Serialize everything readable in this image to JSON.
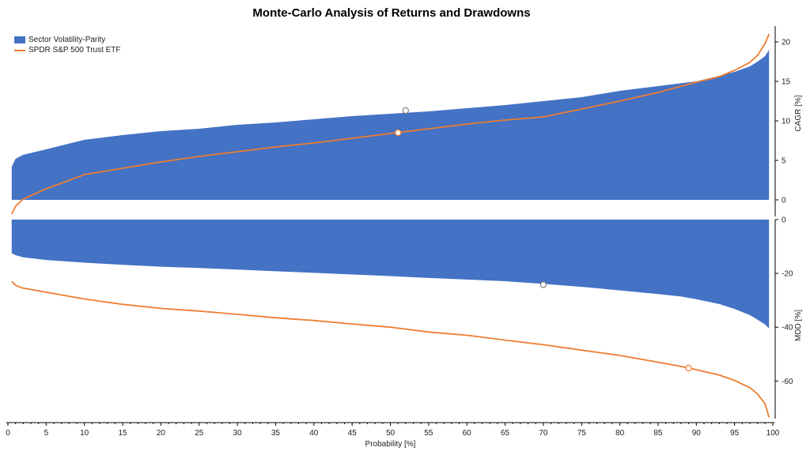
{
  "chart_data": {
    "type": "area",
    "title": "Monte-Carlo Analysis of Returns and Drawdowns",
    "xlabel": "Probability [%]",
    "xlim": [
      0,
      100
    ],
    "x_ticks": [
      0,
      5,
      10,
      15,
      20,
      25,
      30,
      35,
      40,
      45,
      50,
      55,
      60,
      65,
      70,
      75,
      80,
      85,
      90,
      95,
      100
    ],
    "legend": {
      "placement": "top-left",
      "entries": [
        {
          "name": "Sector Volatility-Parity",
          "color": "#4472c4",
          "kind": "area"
        },
        {
          "name": "SPDR S&P 500 Trust ETF",
          "color": "#ed7d31",
          "kind": "line"
        }
      ]
    },
    "panels": [
      {
        "id": "cagr",
        "ylabel": "CAGR [%]",
        "ylim": [
          -2.1,
          22
        ],
        "y_ticks": [
          0,
          5,
          10,
          15,
          20
        ],
        "x": [
          0.5,
          1,
          2,
          5,
          10,
          15,
          20,
          25,
          30,
          35,
          40,
          45,
          50,
          55,
          60,
          65,
          70,
          75,
          80,
          85,
          90,
          93,
          95,
          97,
          98,
          99,
          99.5
        ],
        "series": [
          {
            "name": "Sector Volatility-Parity",
            "kind": "area",
            "values": [
              4.2,
              5.2,
              5.7,
              6.4,
              7.6,
              8.2,
              8.7,
              9.0,
              9.5,
              9.8,
              10.2,
              10.6,
              10.9,
              11.2,
              11.6,
              12.0,
              12.5,
              13.0,
              13.8,
              14.4,
              15.0,
              15.7,
              16.2,
              16.9,
              17.5,
              18.2,
              19.0
            ]
          },
          {
            "name": "SPDR S&P 500 Trust ETF",
            "kind": "line",
            "values": [
              -1.8,
              -0.8,
              0.1,
              1.4,
              3.2,
              4.0,
              4.8,
              5.5,
              6.1,
              6.7,
              7.2,
              7.8,
              8.4,
              9.0,
              9.6,
              10.1,
              10.5,
              11.5,
              12.5,
              13.6,
              14.9,
              15.6,
              16.4,
              17.4,
              18.3,
              19.8,
              21.0
            ]
          }
        ],
        "markers": [
          {
            "series": "Sector Volatility-Parity",
            "x": 52,
            "y": 11.3
          },
          {
            "series": "SPDR S&P 500 Trust ETF",
            "x": 51,
            "y": 8.5
          }
        ]
      },
      {
        "id": "mdd",
        "ylabel": "MDD [%]",
        "ylim": [
          -74,
          0
        ],
        "y_ticks": [
          0,
          -20,
          -40,
          -60
        ],
        "x": [
          0.5,
          1,
          2,
          5,
          10,
          15,
          20,
          25,
          30,
          35,
          40,
          45,
          50,
          55,
          60,
          65,
          70,
          75,
          80,
          85,
          88,
          90,
          93,
          95,
          97,
          98,
          99,
          99.5
        ],
        "series": [
          {
            "name": "Sector Volatility-Parity",
            "kind": "area",
            "values": [
              -12.5,
              -13.2,
              -14.0,
              -15.0,
              -16.0,
              -16.8,
              -17.5,
              -18.0,
              -18.6,
              -19.2,
              -19.8,
              -20.4,
              -21.0,
              -21.7,
              -22.3,
              -22.9,
              -23.9,
              -25.0,
              -26.3,
              -27.7,
              -28.6,
              -29.6,
              -31.4,
              -33.2,
              -35.5,
              -37.2,
              -39.0,
              -40.5
            ]
          },
          {
            "name": "SPDR S&P 500 Trust ETF",
            "kind": "line",
            "values": [
              -23.0,
              -24.5,
              -25.5,
              -27.0,
              -29.5,
              -31.5,
              -33.0,
              -34.0,
              -35.2,
              -36.5,
              -37.5,
              -38.8,
              -40.0,
              -41.8,
              -43.0,
              -44.8,
              -46.5,
              -48.5,
              -50.5,
              -53.0,
              -54.6,
              -55.8,
              -57.8,
              -59.8,
              -62.5,
              -64.8,
              -68.5,
              -73.5
            ]
          }
        ],
        "markers": [
          {
            "series": "Sector Volatility-Parity",
            "x": 70,
            "y": -24.2
          },
          {
            "series": "SPDR S&P 500 Trust ETF",
            "x": 89,
            "y": -55.2
          }
        ]
      }
    ],
    "grid": false
  }
}
